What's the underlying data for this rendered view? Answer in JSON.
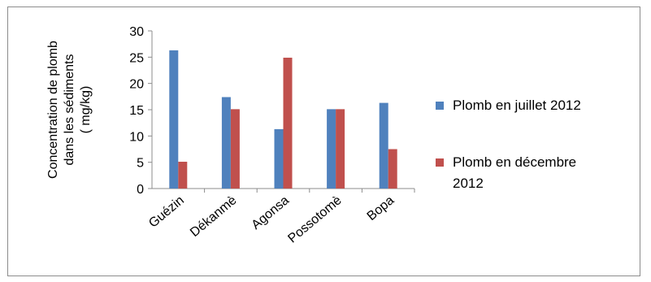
{
  "chart_data": {
    "type": "bar",
    "categories": [
      "Guézin",
      "Dékanmè",
      "Agonsa",
      "Possotomè",
      "Bopa"
    ],
    "series": [
      {
        "name": "Plomb en juillet 2012",
        "values": [
          26.3,
          17.4,
          11.3,
          15.1,
          16.3
        ],
        "color": "#4f81bd"
      },
      {
        "name": "Plomb en décembre 2012",
        "values": [
          5.1,
          15.1,
          24.9,
          15.1,
          7.5
        ],
        "color": "#c0504d"
      }
    ],
    "ylabel_lines": [
      "Concentration de plomb",
      "dans les sédiments",
      "( mg/kg)"
    ],
    "ylim": [
      0,
      30
    ],
    "yticks": [
      0,
      5,
      10,
      15,
      20,
      25,
      30
    ],
    "legend_position": "right",
    "legend_lines": [
      [
        "Plomb en juillet 2012"
      ],
      [
        "Plomb en décembre",
        "2012"
      ]
    ],
    "grid": false
  }
}
